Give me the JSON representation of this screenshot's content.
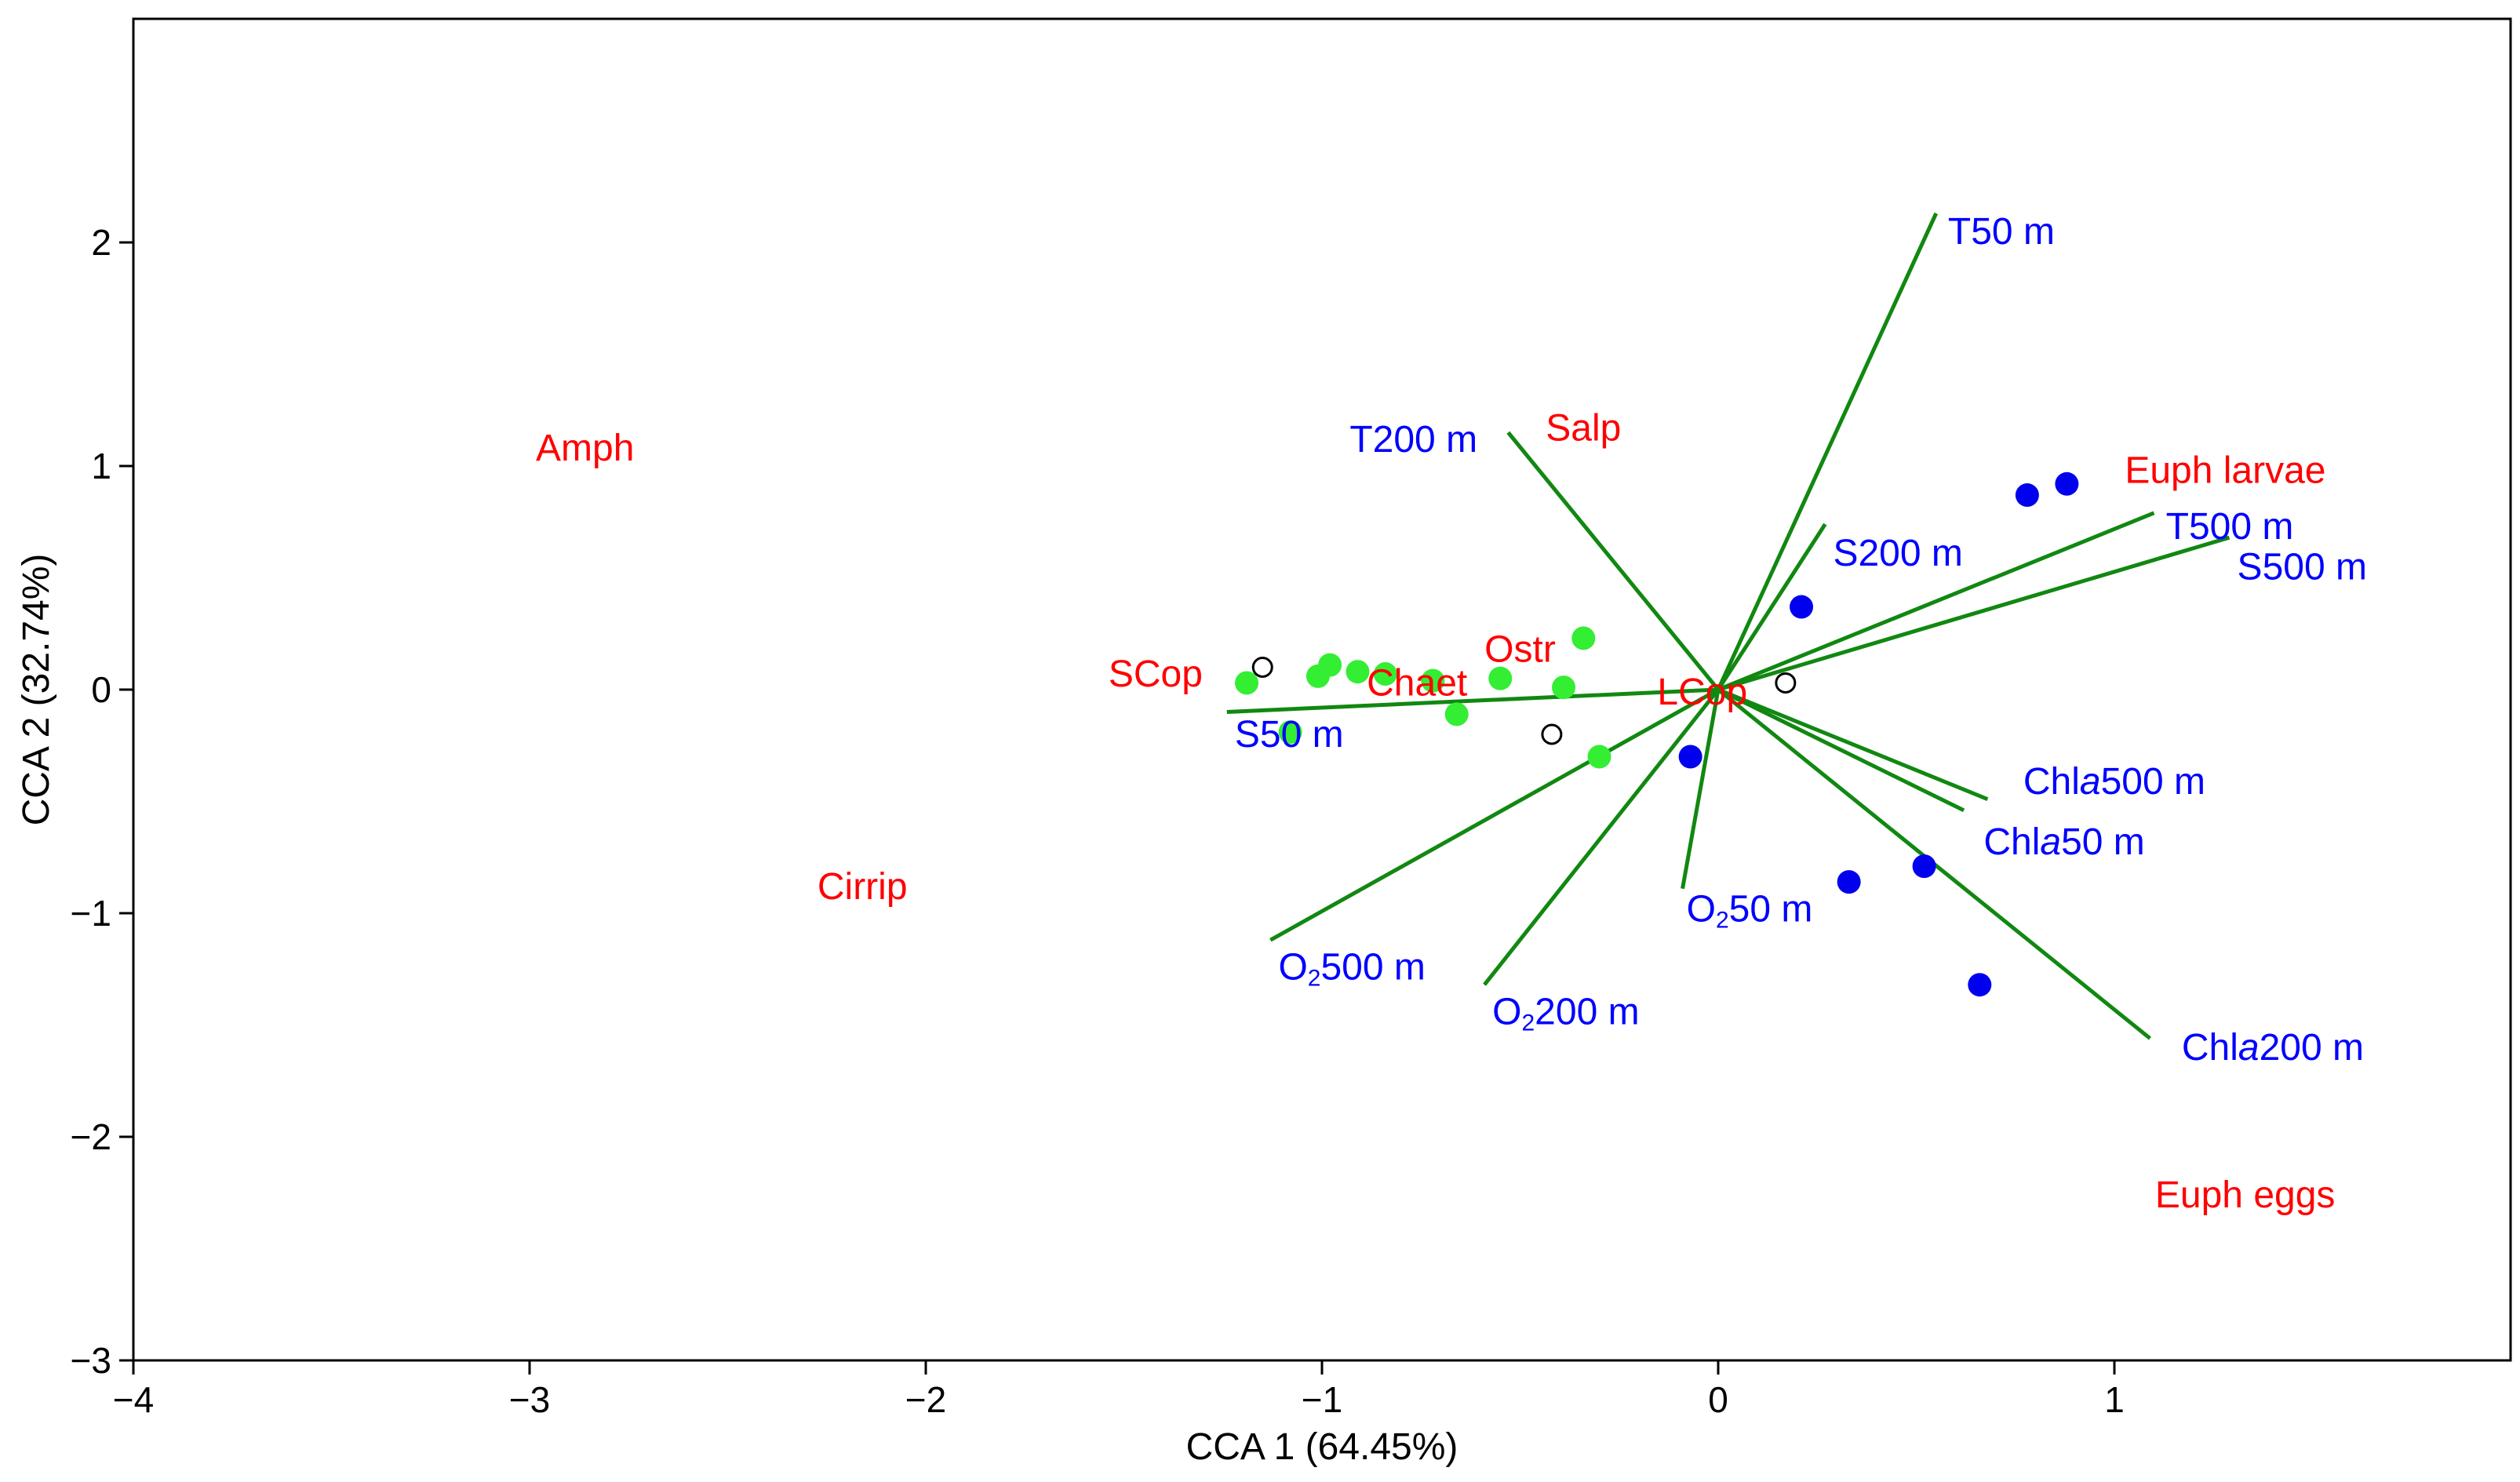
{
  "chart_data": {
    "type": "scatter",
    "title": "",
    "xlabel": "CCA 1 (64.45%)",
    "ylabel": "CCA 2 (32.74%)",
    "xlim": [
      -4,
      2.0
    ],
    "ylim": [
      -3,
      3.0
    ],
    "xticks": [
      -4,
      -3,
      -2,
      -1,
      0,
      1
    ],
    "yticks": [
      -3,
      -2,
      -1,
      0,
      1,
      2
    ],
    "xtick_labels": [
      "−4",
      "−3",
      "−2",
      "−1",
      "0",
      "1"
    ],
    "ytick_labels": [
      "−3",
      "−2",
      "−1",
      "0",
      "1",
      "2"
    ],
    "grid": false,
    "colors": {
      "species_label": "#ff0000",
      "env_label": "#0000ff",
      "arrow": "#118811",
      "group_green": "#33ee33",
      "group_blue": "#0000ee",
      "group_open": "#ffffff"
    },
    "species_scores": [
      {
        "label": "Amph",
        "x": -2.86,
        "y": 1.08
      },
      {
        "label": "Salp",
        "x": -0.34,
        "y": 1.17
      },
      {
        "label": "Euph larvae",
        "x": 1.28,
        "y": 0.98
      },
      {
        "label": "Ostr",
        "x": -0.5,
        "y": 0.18
      },
      {
        "label": "SCop",
        "x": -1.42,
        "y": 0.07
      },
      {
        "label": "Chaet",
        "x": -0.76,
        "y": 0.03
      },
      {
        "label": "LCop",
        "x": -0.04,
        "y": -0.01
      },
      {
        "label": "Cirrip",
        "x": -2.16,
        "y": -0.88
      },
      {
        "label": "Euph eggs",
        "x": 1.33,
        "y": -2.26
      }
    ],
    "environmental_vectors": [
      {
        "label": "T50 m",
        "sub": "",
        "prefix": "",
        "suffix": "",
        "x": 0.55,
        "y": 2.13,
        "lx": 0.58,
        "ly": 2.05
      },
      {
        "label": "T200 m",
        "sub": "",
        "prefix": "",
        "suffix": "",
        "x": -0.53,
        "y": 1.15,
        "lx": -0.93,
        "ly": 1.12
      },
      {
        "label": "S200 m",
        "sub": "",
        "prefix": "",
        "suffix": "",
        "x": 0.27,
        "y": 0.74,
        "lx": 0.29,
        "ly": 0.61
      },
      {
        "label": "T500 m",
        "sub": "",
        "prefix": "",
        "suffix": "",
        "x": 1.1,
        "y": 0.79,
        "lx": 1.13,
        "ly": 0.73
      },
      {
        "label": "S500 m",
        "sub": "",
        "prefix": "",
        "suffix": "",
        "x": 1.29,
        "y": 0.68,
        "lx": 1.31,
        "ly": 0.55
      },
      {
        "label": "S50 m",
        "sub": "",
        "prefix": "",
        "suffix": "",
        "x": -1.24,
        "y": -0.1,
        "lx": -1.22,
        "ly": -0.2
      },
      {
        "label": "Chla500 m",
        "sub": "",
        "prefix": "Chl",
        "italic": "a",
        "suffix": "500 m",
        "x": 0.68,
        "y": -0.49,
        "lx": 0.77,
        "ly": -0.41
      },
      {
        "label": "Chla50 m",
        "sub": "",
        "prefix": "Chl",
        "italic": "a",
        "suffix": "50 m",
        "x": 0.62,
        "y": -0.54,
        "lx": 0.67,
        "ly": -0.68
      },
      {
        "label": "Chla200 m",
        "sub": "",
        "prefix": "Chl",
        "italic": "a",
        "suffix": "200 m",
        "x": 1.09,
        "y": -1.56,
        "lx": 1.17,
        "ly": -1.6
      },
      {
        "label": "O2500 m",
        "prefix": "O",
        "sub": "2",
        "suffix": "500 m",
        "x": -1.13,
        "y": -1.12,
        "lx": -1.11,
        "ly": -1.24
      },
      {
        "label": "O2200 m",
        "prefix": "O",
        "sub": "2",
        "suffix": "200 m",
        "x": -0.59,
        "y": -1.32,
        "lx": -0.57,
        "ly": -1.44
      },
      {
        "label": "O250 m",
        "prefix": "O",
        "sub": "2",
        "suffix": "50 m",
        "x": -0.09,
        "y": -0.89,
        "lx": -0.08,
        "ly": -0.98
      }
    ],
    "site_scores": [
      {
        "group": "green",
        "x": -1.19,
        "y": 0.03
      },
      {
        "group": "green",
        "x": -1.01,
        "y": 0.06
      },
      {
        "group": "green",
        "x": -0.98,
        "y": 0.11
      },
      {
        "group": "green",
        "x": -0.91,
        "y": 0.08
      },
      {
        "group": "green",
        "x": -0.84,
        "y": 0.07
      },
      {
        "group": "green",
        "x": -0.72,
        "y": 0.04
      },
      {
        "group": "green",
        "x": -0.66,
        "y": -0.11
      },
      {
        "group": "green",
        "x": -0.55,
        "y": 0.05
      },
      {
        "group": "green",
        "x": -0.39,
        "y": 0.01
      },
      {
        "group": "green",
        "x": -0.34,
        "y": 0.23
      },
      {
        "group": "green",
        "x": -0.3,
        "y": -0.3
      },
      {
        "group": "green",
        "x": -1.08,
        "y": -0.19
      },
      {
        "group": "blue",
        "x": 0.21,
        "y": 0.37
      },
      {
        "group": "blue",
        "x": 0.78,
        "y": 0.87
      },
      {
        "group": "blue",
        "x": 0.88,
        "y": 0.92
      },
      {
        "group": "blue",
        "x": -0.07,
        "y": -0.3
      },
      {
        "group": "blue",
        "x": 0.33,
        "y": -0.86
      },
      {
        "group": "blue",
        "x": 0.52,
        "y": -0.79
      },
      {
        "group": "blue",
        "x": 0.66,
        "y": -1.32
      },
      {
        "group": "open",
        "x": -1.15,
        "y": 0.1
      },
      {
        "group": "open",
        "x": -0.42,
        "y": -0.2
      },
      {
        "group": "open",
        "x": 0.17,
        "y": 0.03
      }
    ]
  }
}
